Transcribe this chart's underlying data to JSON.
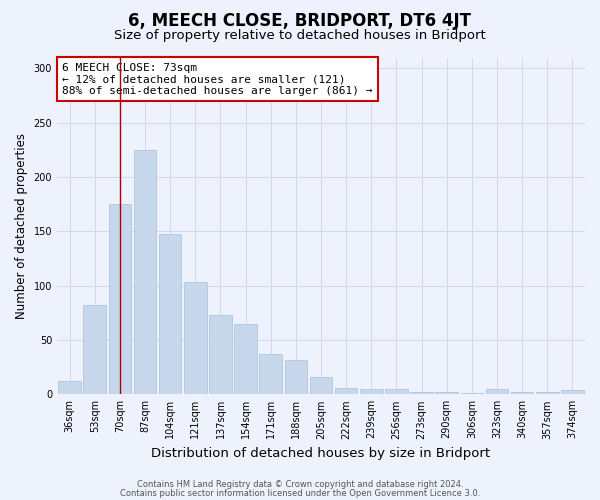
{
  "title": "6, MEECH CLOSE, BRIDPORT, DT6 4JT",
  "subtitle": "Size of property relative to detached houses in Bridport",
  "xlabel": "Distribution of detached houses by size in Bridport",
  "ylabel": "Number of detached properties",
  "categories": [
    "36sqm",
    "53sqm",
    "70sqm",
    "87sqm",
    "104sqm",
    "121sqm",
    "137sqm",
    "154sqm",
    "171sqm",
    "188sqm",
    "205sqm",
    "222sqm",
    "239sqm",
    "256sqm",
    "273sqm",
    "290sqm",
    "306sqm",
    "323sqm",
    "340sqm",
    "357sqm",
    "374sqm"
  ],
  "values": [
    12,
    82,
    175,
    225,
    148,
    103,
    73,
    65,
    37,
    32,
    16,
    6,
    5,
    5,
    2,
    2,
    1,
    5,
    2,
    2,
    4
  ],
  "bar_color": "#c8d8ec",
  "bar_edge_color": "#a8c0d8",
  "bg_color": "#eef2fc",
  "grid_color": "#d0d8ee",
  "red_line_index": 2,
  "red_line_color": "#aa0000",
  "annotation_line1": "6 MEECH CLOSE: 73sqm",
  "annotation_line2": "← 12% of detached houses are smaller (121)",
  "annotation_line3": "88% of semi-detached houses are larger (861) →",
  "annotation_box_color": "#ffffff",
  "annotation_box_edge": "#cc0000",
  "footer1": "Contains HM Land Registry data © Crown copyright and database right 2024.",
  "footer2": "Contains public sector information licensed under the Open Government Licence 3.0.",
  "ylim": [
    0,
    310
  ],
  "title_fontsize": 12,
  "subtitle_fontsize": 9.5,
  "xlabel_fontsize": 9.5,
  "ylabel_fontsize": 8.5,
  "tick_fontsize": 7,
  "annotation_fontsize": 8,
  "footer_fontsize": 6
}
